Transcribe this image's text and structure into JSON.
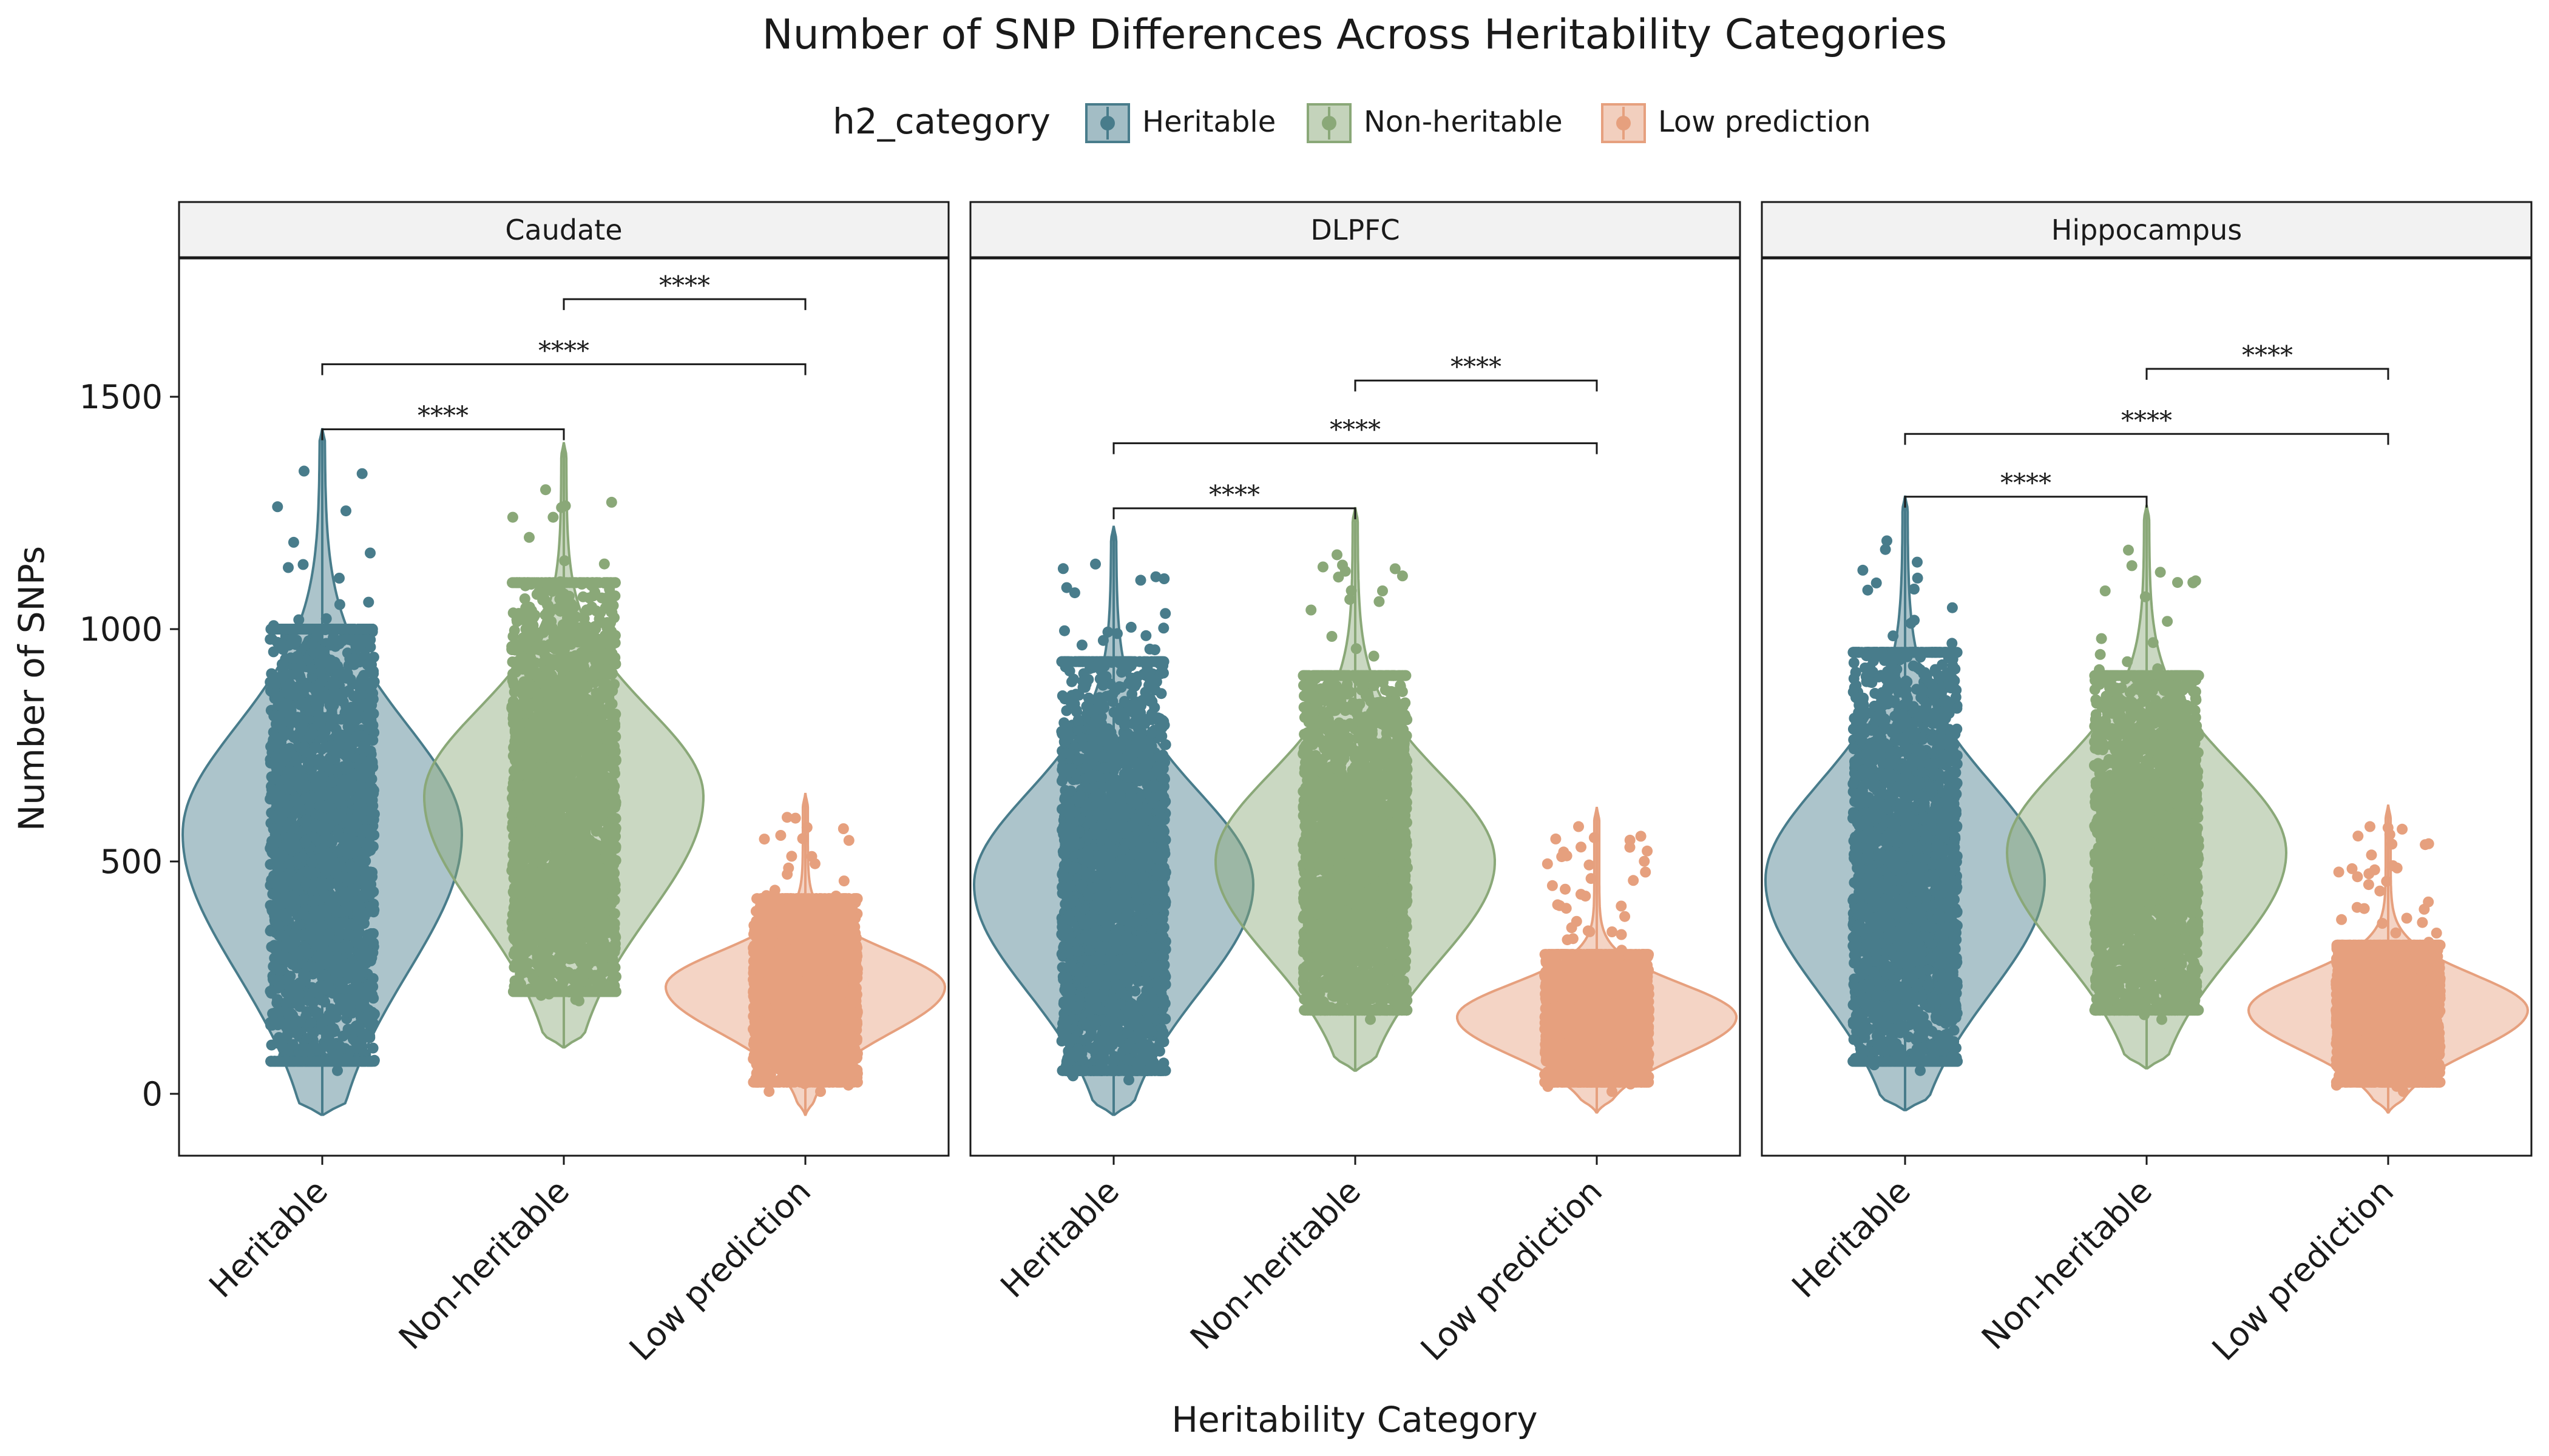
{
  "chart_data": {
    "type": "violin-jitter",
    "title": "Number of SNP Differences Across Heritability Categories",
    "xlabel": "Heritability Category",
    "ylabel": "Number of SNPs",
    "ylim": [
      -130,
      1800
    ],
    "yticks": [
      0,
      500,
      1000,
      1500
    ],
    "categories": [
      "Heritable",
      "Non-heritable",
      "Low prediction"
    ],
    "legend": {
      "title": "h2_category",
      "position": "top",
      "entries": [
        "Heritable",
        "Non-heritable",
        "Low prediction"
      ]
    },
    "colors": {
      "Heritable": "#487c8b",
      "Non-heritable": "#8aa878",
      "Low prediction": "#e6a07e"
    },
    "grid": false,
    "panels": [
      {
        "label": "Caudate",
        "groups": [
          {
            "category": "Heritable",
            "min": -45,
            "max": 1430,
            "q1": 300,
            "median": 520,
            "q3": 760,
            "mode": 560,
            "jitter_min": 50,
            "jitter_max": 1340,
            "jitter_core_max": 1000
          },
          {
            "category": "Non-heritable",
            "min": 100,
            "max": 1400,
            "q1": 420,
            "median": 600,
            "q3": 800,
            "mode": 640,
            "jitter_min": 200,
            "jitter_max": 1300,
            "jitter_core_max": 1100
          },
          {
            "category": "Low prediction",
            "min": -45,
            "max": 645,
            "q1": 150,
            "median": 220,
            "q3": 290,
            "mode": 230,
            "jitter_min": 5,
            "jitter_max": 595,
            "jitter_core_max": 420
          }
        ],
        "comparisons": [
          {
            "groups": [
              "Heritable",
              "Non-heritable"
            ],
            "y": 1430,
            "label": "****"
          },
          {
            "groups": [
              "Heritable",
              "Low prediction"
            ],
            "y": 1570,
            "label": "****"
          },
          {
            "groups": [
              "Non-heritable",
              "Low prediction"
            ],
            "y": 1710,
            "label": "****"
          }
        ]
      },
      {
        "label": "DLPFC",
        "groups": [
          {
            "category": "Heritable",
            "min": -45,
            "max": 1220,
            "q1": 250,
            "median": 430,
            "q3": 620,
            "mode": 450,
            "jitter_min": 30,
            "jitter_max": 1140,
            "jitter_core_max": 930
          },
          {
            "category": "Non-heritable",
            "min": 50,
            "max": 1260,
            "q1": 320,
            "median": 480,
            "q3": 660,
            "mode": 500,
            "jitter_min": 160,
            "jitter_max": 1160,
            "jitter_core_max": 900
          },
          {
            "category": "Low prediction",
            "min": -40,
            "max": 615,
            "q1": 100,
            "median": 160,
            "q3": 220,
            "mode": 165,
            "jitter_min": 5,
            "jitter_max": 575,
            "jitter_core_max": 300
          }
        ],
        "comparisons": [
          {
            "groups": [
              "Heritable",
              "Non-heritable"
            ],
            "y": 1260,
            "label": "****"
          },
          {
            "groups": [
              "Heritable",
              "Low prediction"
            ],
            "y": 1400,
            "label": "****"
          },
          {
            "groups": [
              "Non-heritable",
              "Low prediction"
            ],
            "y": 1535,
            "label": "****"
          }
        ]
      },
      {
        "label": "Hippocampus",
        "groups": [
          {
            "category": "Heritable",
            "min": -35,
            "max": 1285,
            "q1": 250,
            "median": 440,
            "q3": 640,
            "mode": 460,
            "jitter_min": 50,
            "jitter_max": 1190,
            "jitter_core_max": 950
          },
          {
            "category": "Non-heritable",
            "min": 55,
            "max": 1265,
            "q1": 330,
            "median": 500,
            "q3": 680,
            "mode": 520,
            "jitter_min": 160,
            "jitter_max": 1170,
            "jitter_core_max": 900
          },
          {
            "category": "Low prediction",
            "min": -40,
            "max": 620,
            "q1": 110,
            "median": 170,
            "q3": 240,
            "mode": 180,
            "jitter_min": 5,
            "jitter_max": 575,
            "jitter_core_max": 320
          }
        ],
        "comparisons": [
          {
            "groups": [
              "Heritable",
              "Non-heritable"
            ],
            "y": 1285,
            "label": "****"
          },
          {
            "groups": [
              "Heritable",
              "Low prediction"
            ],
            "y": 1420,
            "label": "****"
          },
          {
            "groups": [
              "Non-heritable",
              "Low prediction"
            ],
            "y": 1560,
            "label": "****"
          }
        ]
      }
    ]
  }
}
